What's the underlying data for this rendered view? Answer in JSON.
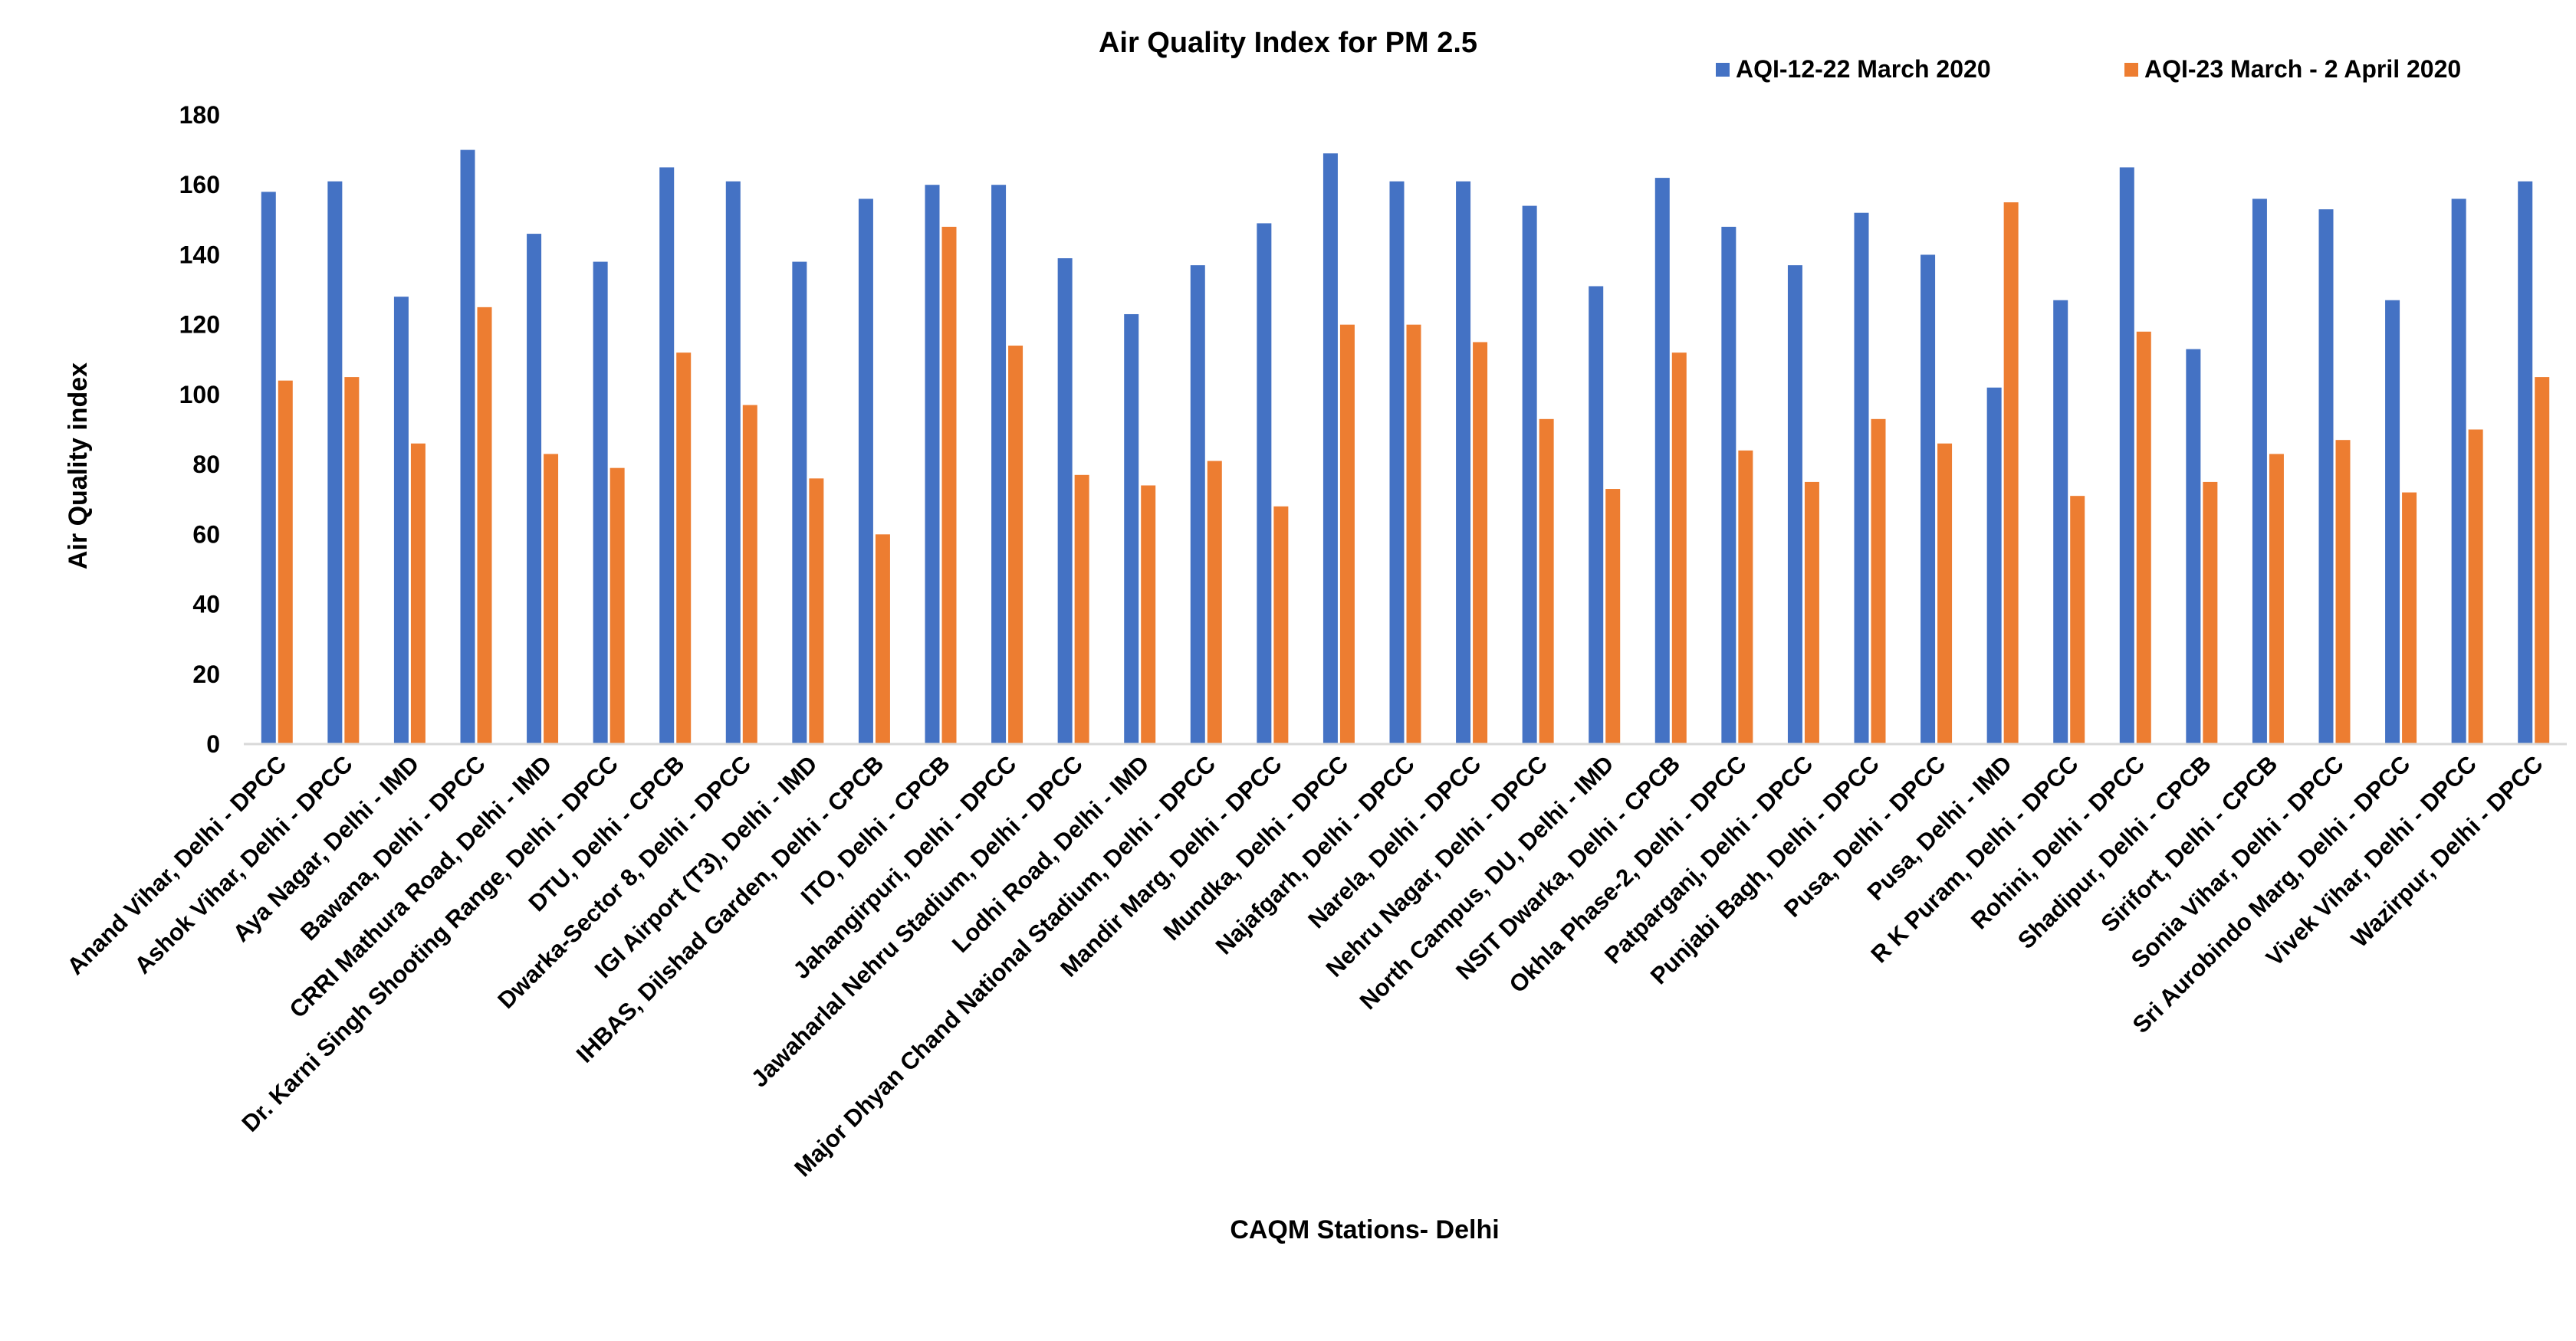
{
  "chart_data": {
    "type": "bar",
    "title": "Air Quality Index for PM 2.5",
    "xlabel": "CAQM Stations- Delhi",
    "ylabel": "Air Quality index",
    "ylim": [
      0,
      180
    ],
    "yticks": [
      "0",
      "20",
      "40",
      "60",
      "80",
      "100",
      "120",
      "140",
      "160",
      "180"
    ],
    "grid": false,
    "legend_position": "top-right",
    "colors": {
      "series_1": "#4472C4",
      "series_2": "#ED7D31",
      "axis": "#D9D9D9",
      "text": "#000000"
    },
    "categories": [
      "Anand Vihar, Delhi - DPCC",
      "Ashok Vihar, Delhi - DPCC",
      "Aya Nagar, Delhi - IMD",
      "Bawana, Delhi - DPCC",
      "CRRI Mathura Road, Delhi - IMD",
      "Dr. Karni Singh Shooting Range, Delhi - DPCC",
      "DTU, Delhi - CPCB",
      "Dwarka-Sector 8, Delhi - DPCC",
      "IGI Airport (T3), Delhi - IMD",
      "IHBAS, Dilshad Garden, Delhi - CPCB",
      "ITO, Delhi - CPCB",
      "Jahangirpuri, Delhi - DPCC",
      "Jawaharlal Nehru Stadium, Delhi - DPCC",
      "Lodhi Road, Delhi - IMD",
      "Major Dhyan Chand National Stadium, Delhi - DPCC",
      "Mandir Marg, Delhi - DPCC",
      "Mundka, Delhi - DPCC",
      "Najafgarh, Delhi - DPCC",
      "Narela, Delhi - DPCC",
      "Nehru Nagar, Delhi - DPCC",
      "North Campus, DU, Delhi - IMD",
      "NSIT Dwarka, Delhi - CPCB",
      "Okhla Phase-2, Delhi - DPCC",
      "Patparganj, Delhi - DPCC",
      "Punjabi Bagh, Delhi - DPCC",
      "Pusa, Delhi - DPCC",
      "Pusa, Delhi - IMD",
      "R K Puram, Delhi - DPCC",
      "Rohini, Delhi - DPCC",
      "Shadipur, Delhi - CPCB",
      "Sirifort, Delhi - CPCB",
      "Sonia Vihar, Delhi - DPCC",
      "Sri Aurobindo Marg, Delhi - DPCC",
      "Vivek Vihar, Delhi - DPCC",
      "Wazirpur, Delhi - DPCC"
    ],
    "series": [
      {
        "name": "AQI-12-22 March 2020",
        "values": [
          158,
          161,
          128,
          170,
          146,
          138,
          165,
          161,
          138,
          156,
          160,
          160,
          139,
          123,
          137,
          149,
          169,
          161,
          161,
          154,
          131,
          162,
          148,
          137,
          152,
          140,
          102,
          127,
          165,
          113,
          156,
          153,
          127,
          156,
          161
        ]
      },
      {
        "name": "AQI-23 March - 2 April 2020",
        "values": [
          104,
          105,
          86,
          125,
          83,
          79,
          112,
          97,
          76,
          60,
          148,
          114,
          77,
          74,
          81,
          68,
          120,
          120,
          115,
          93,
          73,
          112,
          84,
          75,
          93,
          86,
          155,
          71,
          118,
          75,
          83,
          87,
          72,
          90,
          105
        ]
      }
    ]
  }
}
